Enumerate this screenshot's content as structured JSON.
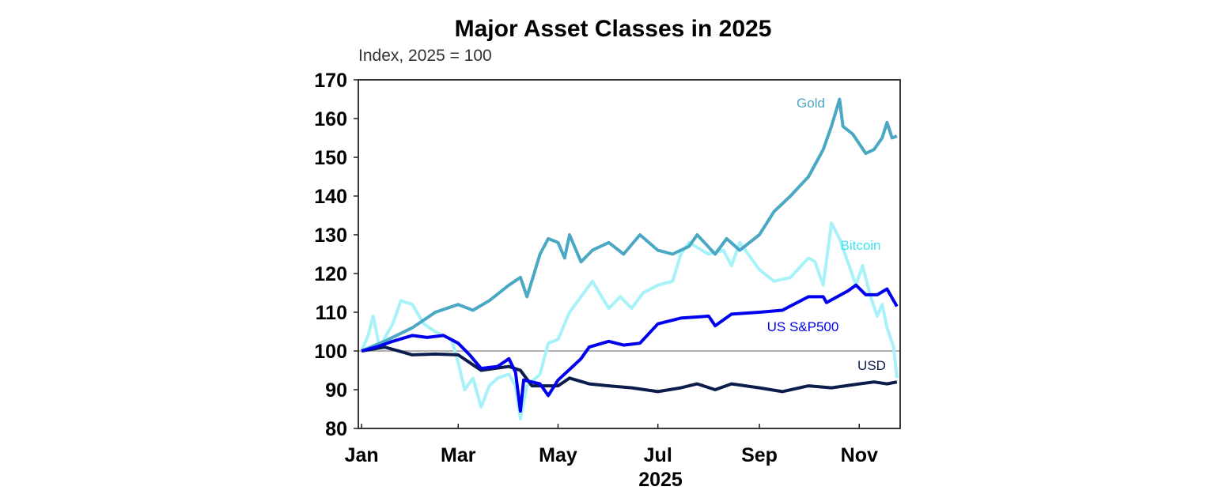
{
  "chart_data": {
    "type": "line",
    "title": "Major Asset Classes in 2025",
    "subtitle": "Index, 2025 = 100",
    "xlabel": "2025",
    "ylabel": "",
    "ylim": [
      80,
      170
    ],
    "xlim": [
      "2024-12-30",
      "2025-11-26"
    ],
    "yticks": [
      80,
      90,
      100,
      110,
      120,
      130,
      140,
      150,
      160,
      170
    ],
    "xticks": [
      {
        "date": "2025-01-01",
        "label": "Jan"
      },
      {
        "date": "2025-03-01",
        "label": "Mar"
      },
      {
        "date": "2025-05-01",
        "label": "May"
      },
      {
        "date": "2025-07-01",
        "label": "Jul"
      },
      {
        "date": "2025-09-01",
        "label": "Sep"
      },
      {
        "date": "2025-11-01",
        "label": "Nov"
      }
    ],
    "reference_line": 100,
    "grid": false,
    "legend": "inline labels at line ends",
    "series": [
      {
        "name": "Gold",
        "color": "#4aa8c4",
        "label_color": "#4aa8c4",
        "x": [
          "2025-01-01",
          "2025-01-15",
          "2025-02-01",
          "2025-02-15",
          "2025-03-01",
          "2025-03-10",
          "2025-03-20",
          "2025-04-01",
          "2025-04-08",
          "2025-04-12",
          "2025-04-20",
          "2025-04-25",
          "2025-05-01",
          "2025-05-05",
          "2025-05-08",
          "2025-05-15",
          "2025-05-22",
          "2025-06-01",
          "2025-06-10",
          "2025-06-20",
          "2025-07-01",
          "2025-07-10",
          "2025-07-20",
          "2025-07-25",
          "2025-08-05",
          "2025-08-12",
          "2025-08-20",
          "2025-09-01",
          "2025-09-10",
          "2025-09-20",
          "2025-10-01",
          "2025-10-10",
          "2025-10-15",
          "2025-10-20",
          "2025-10-22",
          "2025-10-28",
          "2025-11-05",
          "2025-11-10",
          "2025-11-15",
          "2025-11-18",
          "2025-11-21",
          "2025-11-24"
        ],
        "values": [
          100,
          102.5,
          106,
          110,
          112,
          110.5,
          113,
          117,
          119,
          114,
          125,
          129,
          128,
          124,
          130,
          123,
          126,
          128,
          125,
          130,
          126,
          125,
          127,
          130,
          125,
          129,
          126,
          130,
          136,
          140,
          145,
          152,
          158,
          165,
          158,
          156,
          151,
          152,
          155,
          159,
          155,
          155.5
        ]
      },
      {
        "name": "Bitcoin",
        "color": "#a6f2f8",
        "label_color": "#3ee6f0",
        "x": [
          "2025-01-01",
          "2025-01-05",
          "2025-01-08",
          "2025-01-12",
          "2025-01-20",
          "2025-01-25",
          "2025-02-01",
          "2025-02-08",
          "2025-02-15",
          "2025-02-20",
          "2025-02-25",
          "2025-03-01",
          "2025-03-05",
          "2025-03-10",
          "2025-03-15",
          "2025-03-20",
          "2025-03-25",
          "2025-04-01",
          "2025-04-05",
          "2025-04-08",
          "2025-04-12",
          "2025-04-20",
          "2025-04-25",
          "2025-05-01",
          "2025-05-08",
          "2025-05-15",
          "2025-05-22",
          "2025-06-01",
          "2025-06-08",
          "2025-06-15",
          "2025-06-22",
          "2025-07-01",
          "2025-07-10",
          "2025-07-15",
          "2025-07-20",
          "2025-08-01",
          "2025-08-10",
          "2025-08-15",
          "2025-08-20",
          "2025-09-01",
          "2025-09-10",
          "2025-09-20",
          "2025-10-01",
          "2025-10-05",
          "2025-10-10",
          "2025-10-15",
          "2025-10-20",
          "2025-10-30",
          "2025-11-03",
          "2025-11-08",
          "2025-11-12",
          "2025-11-15",
          "2025-11-18",
          "2025-11-22",
          "2025-11-24"
        ],
        "values": [
          100,
          104,
          109,
          101,
          107,
          113,
          112,
          107,
          105,
          104,
          103,
          97,
          90,
          93,
          85.5,
          91,
          93,
          94,
          91,
          82.5,
          91,
          94,
          102,
          103,
          110,
          114,
          118,
          111,
          114,
          111,
          115,
          117,
          118,
          125,
          128,
          125,
          126,
          122,
          128,
          121,
          118,
          119,
          124,
          123,
          117,
          133,
          129,
          117,
          122,
          114,
          109,
          112,
          106,
          101,
          93
        ]
      },
      {
        "name": "US S&P500",
        "color": "#0000ee",
        "label_color": "#0000ee",
        "x": [
          "2025-01-01",
          "2025-01-10",
          "2025-01-20",
          "2025-02-01",
          "2025-02-10",
          "2025-02-20",
          "2025-03-01",
          "2025-03-08",
          "2025-03-15",
          "2025-03-25",
          "2025-04-01",
          "2025-04-05",
          "2025-04-08",
          "2025-04-10",
          "2025-04-20",
          "2025-04-25",
          "2025-05-01",
          "2025-05-10",
          "2025-05-15",
          "2025-05-20",
          "2025-06-01",
          "2025-06-10",
          "2025-06-20",
          "2025-07-01",
          "2025-07-15",
          "2025-08-01",
          "2025-08-05",
          "2025-08-15",
          "2025-09-01",
          "2025-09-15",
          "2025-10-01",
          "2025-10-10",
          "2025-10-12",
          "2025-10-25",
          "2025-10-30",
          "2025-11-05",
          "2025-11-12",
          "2025-11-18",
          "2025-11-22",
          "2025-11-24"
        ],
        "values": [
          100,
          101,
          102.5,
          104,
          103.5,
          104,
          102,
          99,
          95.5,
          96,
          98,
          94.5,
          84.5,
          92.5,
          91.5,
          88.5,
          92.5,
          96,
          98,
          101,
          102.5,
          101.5,
          102,
          107,
          108.5,
          109,
          106.5,
          109.5,
          110,
          110.5,
          114,
          114,
          112.5,
          115.5,
          117,
          114.5,
          114.5,
          116,
          113,
          111.5
        ]
      },
      {
        "name": "USD",
        "color": "#0c1c4c",
        "label_color": "#0c1c4c",
        "x": [
          "2025-01-01",
          "2025-01-15",
          "2025-02-01",
          "2025-02-15",
          "2025-03-01",
          "2025-03-08",
          "2025-03-15",
          "2025-04-01",
          "2025-04-08",
          "2025-04-15",
          "2025-05-01",
          "2025-05-08",
          "2025-05-20",
          "2025-06-01",
          "2025-06-15",
          "2025-07-01",
          "2025-07-15",
          "2025-07-25",
          "2025-08-05",
          "2025-08-15",
          "2025-09-01",
          "2025-09-15",
          "2025-10-01",
          "2025-10-15",
          "2025-11-01",
          "2025-11-10",
          "2025-11-18",
          "2025-11-24"
        ],
        "values": [
          100,
          101,
          99,
          99.2,
          99,
          97,
          95,
          96,
          95,
          91,
          91,
          93,
          91.5,
          91,
          90.5,
          89.5,
          90.5,
          91.5,
          90,
          91.5,
          90.5,
          89.5,
          91,
          90.5,
          91.5,
          92,
          91.5,
          92
        ]
      }
    ]
  }
}
